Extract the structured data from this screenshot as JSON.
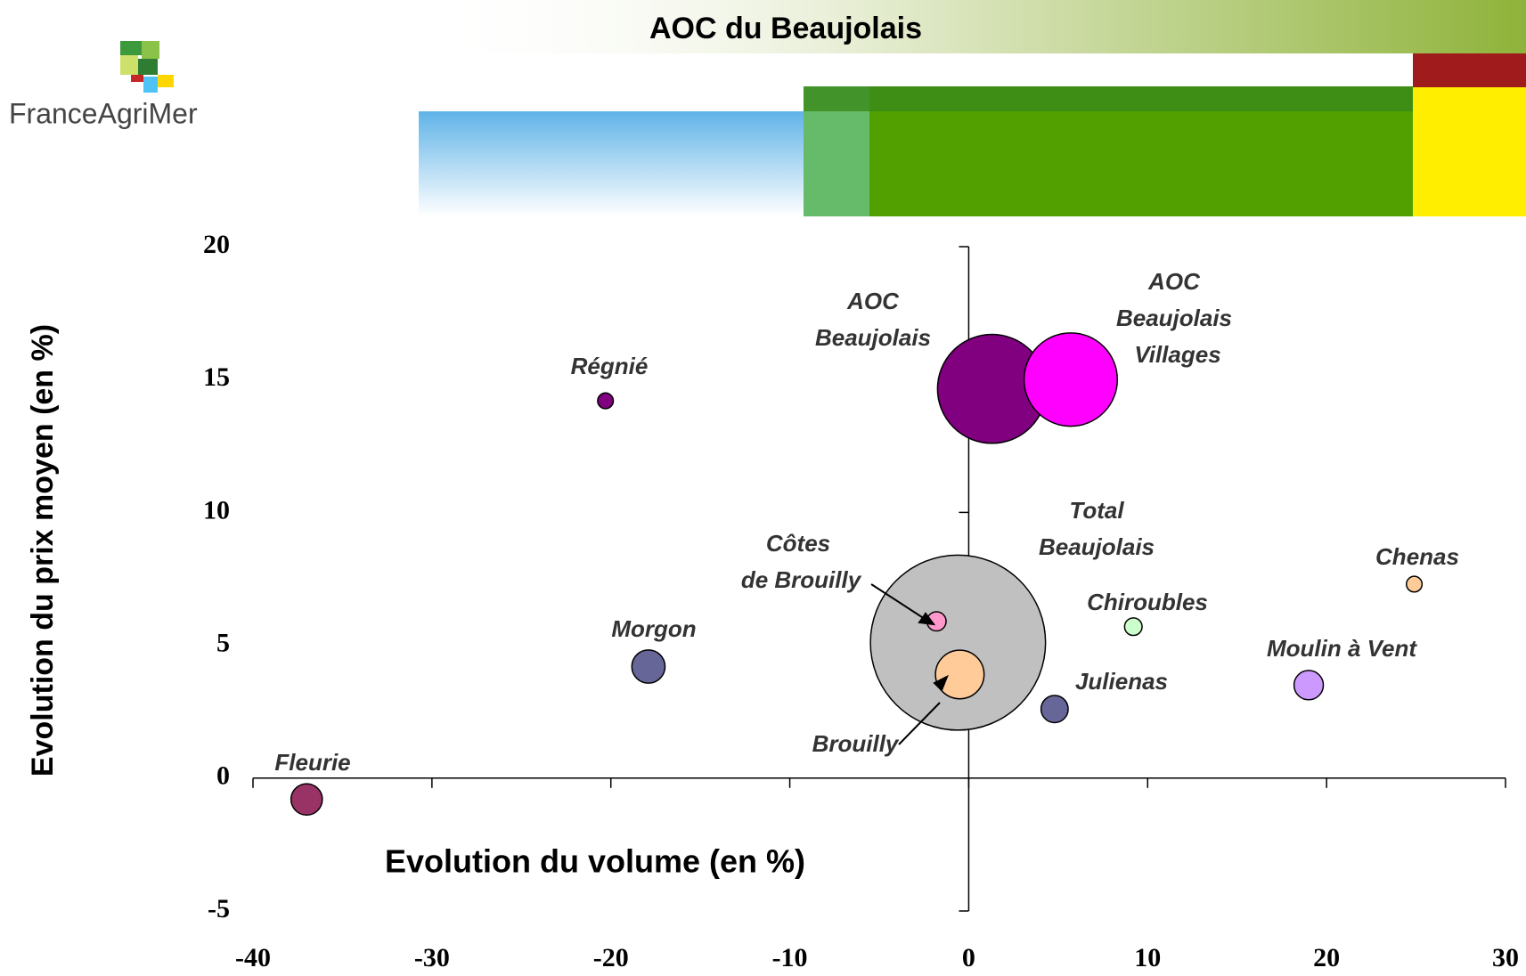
{
  "header": {
    "logo_text": "FranceAgriMer"
  },
  "chart_data": {
    "type": "bubble",
    "title": "AOC du Beaujolais",
    "x_label": "Evolution du volume (en %)",
    "y_label": "Evolution du prix moyen (en %)",
    "xlim": [
      -40,
      30
    ],
    "xticks": [
      -40,
      -30,
      -20,
      -10,
      0,
      10,
      20,
      30
    ],
    "ylim": [
      -5,
      20
    ],
    "yticks": [
      -5,
      0,
      5,
      10,
      15,
      20
    ],
    "points": [
      {
        "label_lines": [
          "Total",
          "Beaujolais"
        ],
        "x": -0.6,
        "y": 5.1,
        "size": 100,
        "color": "#c0c0c0"
      },
      {
        "label_lines": [
          "AOC",
          "Beaujolais"
        ],
        "x": 1.3,
        "y": 14.65,
        "size": 38.7,
        "color": "#800080"
      },
      {
        "label_lines": [
          "AOC",
          "Beaujolais",
          "Villages"
        ],
        "x": 5.7,
        "y": 15.0,
        "size": 28.4,
        "color": "#ff00ff"
      },
      {
        "label_lines": [
          "Régnié"
        ],
        "x": -20.3,
        "y": 14.2,
        "size": 0.8,
        "color": "#800080"
      },
      {
        "label_lines": [
          "Côtes",
          "de Brouilly"
        ],
        "x": -1.8,
        "y": 5.9,
        "size": 1.2,
        "color": "#ff99cc"
      },
      {
        "label_lines": [
          "Brouilly"
        ],
        "x": -0.5,
        "y": 3.9,
        "size": 7.7,
        "color": "#ffcc99"
      },
      {
        "label_lines": [
          "Chiroubles"
        ],
        "x": 9.2,
        "y": 5.7,
        "size": 1.0,
        "color": "#ccffcc"
      },
      {
        "label_lines": [
          "Chenas"
        ],
        "x": 24.9,
        "y": 7.3,
        "size": 0.8,
        "color": "#ffcc99"
      },
      {
        "label_lines": [
          "Morgon"
        ],
        "x": -17.9,
        "y": 4.2,
        "size": 3.6,
        "color": "#666699"
      },
      {
        "label_lines": [
          "Moulin à Vent"
        ],
        "x": 19.0,
        "y": 3.5,
        "size": 2.8,
        "color": "#cc99ff"
      },
      {
        "label_lines": [
          "Julienas"
        ],
        "x": 4.8,
        "y": 2.6,
        "size": 2.4,
        "color": "#666699"
      },
      {
        "label_lines": [
          "Fleurie"
        ],
        "x": -37.0,
        "y": -0.8,
        "size": 3.2,
        "color": "#993366"
      }
    ]
  }
}
